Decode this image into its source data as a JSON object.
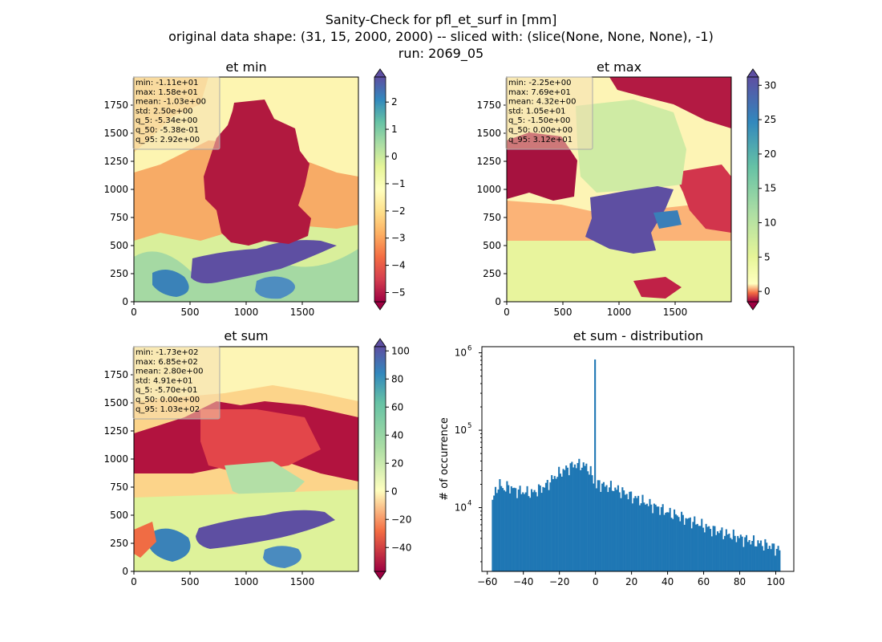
{
  "suptitle": {
    "line1": "Sanity-Check for pfl_et_surf in [mm]",
    "line2": "original data shape: (31, 15, 2000, 2000) -- sliced with: (slice(None, None, None), -1)",
    "line3": "run: 2069_05"
  },
  "chart_data": [
    {
      "type": "heatmap",
      "title": "et min",
      "colormap": "Spectral",
      "xlim": [
        0,
        2000
      ],
      "ylim": [
        0,
        2000
      ],
      "xticks": [
        0,
        500,
        1000,
        1500
      ],
      "yticks": [
        0,
        250,
        500,
        750,
        1000,
        1250,
        1500,
        1750
      ],
      "colorbar": {
        "range": [
          -5.34,
          2.92
        ],
        "ticks": [
          2,
          1,
          0,
          -1,
          -2,
          -3,
          -4,
          -5
        ],
        "extend": "both"
      },
      "stats": [
        "min: -1.11e+01",
        "max: 1.58e+01",
        "mean: -1.03e+00",
        "std: 2.50e+00",
        "q_5: -5.34e+00",
        "q_50: -5.38e-01",
        "q_95: 2.92e+00"
      ]
    },
    {
      "type": "heatmap",
      "title": "et max",
      "colormap": "Spectral",
      "xlim": [
        0,
        2000
      ],
      "ylim": [
        0,
        2000
      ],
      "xticks": [
        0,
        500,
        1000,
        1500
      ],
      "yticks": [
        0,
        250,
        500,
        750,
        1000,
        1250,
        1500,
        1750
      ],
      "colorbar": {
        "range": [
          -1.5,
          31.2
        ],
        "ticks": [
          30,
          25,
          20,
          15,
          10,
          5,
          0
        ],
        "extend": "both"
      },
      "stats": [
        "min: -2.25e+00",
        "max: 7.69e+01",
        "mean: 4.32e+00",
        "std: 1.05e+01",
        "q_5: -1.50e+00",
        "q_50: 0.00e+00",
        "q_95: 3.12e+01"
      ]
    },
    {
      "type": "heatmap",
      "title": "et sum",
      "colormap": "Spectral",
      "xlim": [
        0,
        2000
      ],
      "ylim": [
        0,
        2000
      ],
      "xticks": [
        0,
        500,
        1000,
        1500
      ],
      "yticks": [
        0,
        250,
        500,
        750,
        1000,
        1250,
        1500,
        1750
      ],
      "colorbar": {
        "range": [
          -57,
          103
        ],
        "ticks": [
          100,
          80,
          60,
          40,
          20,
          0,
          -20,
          -40
        ],
        "extend": "both"
      },
      "stats": [
        "min: -1.73e+02",
        "max: 6.85e+02",
        "mean: 2.80e+00",
        "std: 4.91e+01",
        "q_5: -5.70e+01",
        "q_50: 0.00e+00",
        "q_95: 1.03e+02"
      ]
    },
    {
      "type": "bar",
      "title": "et sum - distribution",
      "ylabel": "# of occurrence",
      "xlabel": "",
      "yscale": "log",
      "xlim": [
        -63,
        110
      ],
      "ylim": [
        1500,
        1200000
      ],
      "xticks": [
        -60,
        -40,
        -20,
        0,
        20,
        40,
        60,
        80,
        100
      ],
      "yticks": [
        {
          "value": 10000,
          "base": "10",
          "exp": "4"
        },
        {
          "value": 100000,
          "base": "10",
          "exp": "5"
        },
        {
          "value": 1000000,
          "base": "10",
          "exp": "6"
        }
      ],
      "color": "#1f77b4",
      "spike": {
        "x": 0,
        "value": 820000
      },
      "profile": [
        [
          -57.5,
          12000
        ],
        [
          -56,
          14500
        ],
        [
          -55,
          18000
        ],
        [
          -53,
          20000
        ],
        [
          -51,
          17500
        ],
        [
          -48,
          19000
        ],
        [
          -45,
          17000
        ],
        [
          -40,
          16000
        ],
        [
          -35,
          15500
        ],
        [
          -32,
          17000
        ],
        [
          -28,
          19000
        ],
        [
          -25,
          22000
        ],
        [
          -22,
          26000
        ],
        [
          -18,
          30000
        ],
        [
          -15,
          33000
        ],
        [
          -12,
          36000
        ],
        [
          -8,
          36000
        ],
        [
          -5,
          34000
        ],
        [
          -3,
          30000
        ],
        [
          -1.5,
          24000
        ],
        [
          0.5,
          19000
        ],
        [
          2,
          21000
        ],
        [
          5,
          19000
        ],
        [
          10,
          18000
        ],
        [
          15,
          16000
        ],
        [
          20,
          14000
        ],
        [
          25,
          12500
        ],
        [
          30,
          11000
        ],
        [
          35,
          10000
        ],
        [
          40,
          8700
        ],
        [
          45,
          8000
        ],
        [
          50,
          7200
        ],
        [
          55,
          6500
        ],
        [
          60,
          5800
        ],
        [
          65,
          5200
        ],
        [
          70,
          4800
        ],
        [
          75,
          4400
        ],
        [
          80,
          4100
        ],
        [
          85,
          3800
        ],
        [
          90,
          3500
        ],
        [
          95,
          3300
        ],
        [
          100,
          3000
        ],
        [
          102.5,
          2800
        ]
      ]
    }
  ]
}
